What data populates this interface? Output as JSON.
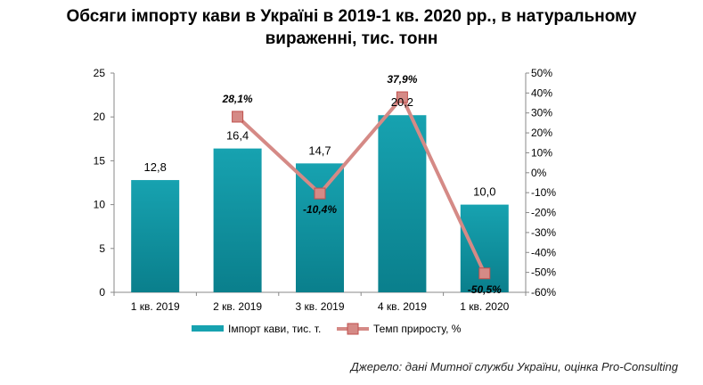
{
  "title_line1": "Обсяги імпорту кави в Україні в 2019-1 кв. 2020 рр., в натуральному",
  "title_line2": "вираженні, тис. тонн",
  "source": "Джерело: дані Митної служби України, оцінка Pro-Consulting",
  "colors": {
    "bar": "#17a2b0",
    "bar_dark": "#0a7f8c",
    "line": "#d58a86",
    "marker": "#c0504d"
  },
  "chart_data": {
    "type": "bar",
    "categories": [
      "1 кв. 2019",
      "2 кв. 2019",
      "3 кв. 2019",
      "4 кв. 2019",
      "1 кв. 2020"
    ],
    "series": [
      {
        "name": "Імпорт кави, тис. т.",
        "type": "bar",
        "axis": "left",
        "values": [
          12.8,
          16.4,
          14.7,
          20.2,
          10.0
        ],
        "labels": [
          "12,8",
          "16,4",
          "14,7",
          "20,2",
          "10,0"
        ]
      },
      {
        "name": "Темп приросту, %",
        "type": "line",
        "axis": "right",
        "values": [
          null,
          28.1,
          -10.4,
          37.9,
          -50.5
        ],
        "labels": [
          "",
          "28,1%",
          "-10,4%",
          "37,9%",
          "-50,5%"
        ]
      }
    ],
    "y_left": {
      "min": 0,
      "max": 25,
      "ticks": [
        "0",
        "5",
        "10",
        "15",
        "20",
        "25"
      ]
    },
    "y_right": {
      "min": -60,
      "max": 50,
      "ticks": [
        "-60%",
        "-50%",
        "-40%",
        "-30%",
        "-20%",
        "-10%",
        "0%",
        "10%",
        "20%",
        "30%",
        "40%",
        "50%"
      ]
    },
    "legend_position": "bottom",
    "grid": false
  }
}
